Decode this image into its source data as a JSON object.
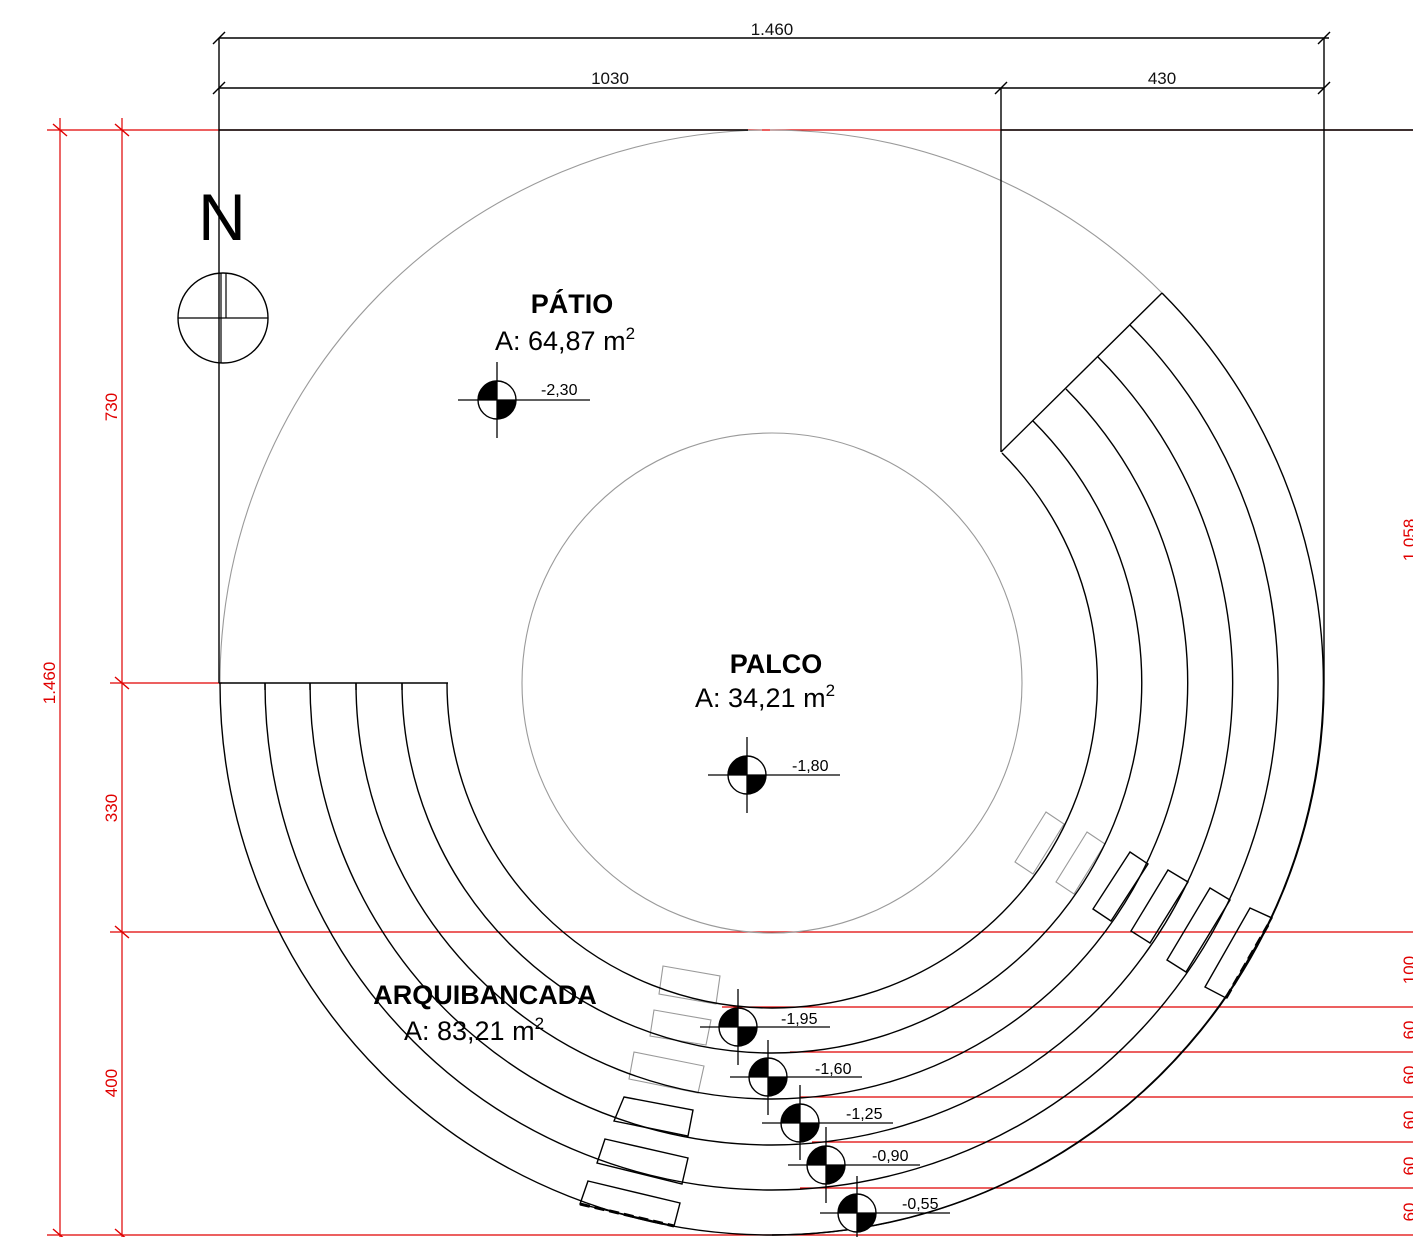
{
  "north": {
    "label": "N"
  },
  "rooms": [
    {
      "name": "PÁTIO",
      "area_label": "A: 64,87 m",
      "area_sup": "2"
    },
    {
      "name": "PALCO",
      "area_label": "A: 34,21 m",
      "area_sup": "2"
    },
    {
      "name": "ARQUIBANCADA",
      "area_label": "A: 83,21 m",
      "area_sup": "2"
    }
  ],
  "levels": [
    "-2,30",
    "-1,80",
    "-1,95",
    "-1,60",
    "-1,25",
    "-0,90",
    "-0,55"
  ],
  "dimensions": {
    "top_total": "1.460",
    "top_left": "1030",
    "top_right": "430",
    "left_total": "1.460",
    "left_upper": "730",
    "left_middle": "330",
    "left_lower": "400",
    "right_partial": "1.058",
    "right_steps": [
      "100",
      "60",
      "60",
      "60",
      "60",
      "60"
    ]
  },
  "colors": {
    "dimension_line": "#e00000",
    "linework": "#000000",
    "hidden_line": "#9a9a9a"
  }
}
